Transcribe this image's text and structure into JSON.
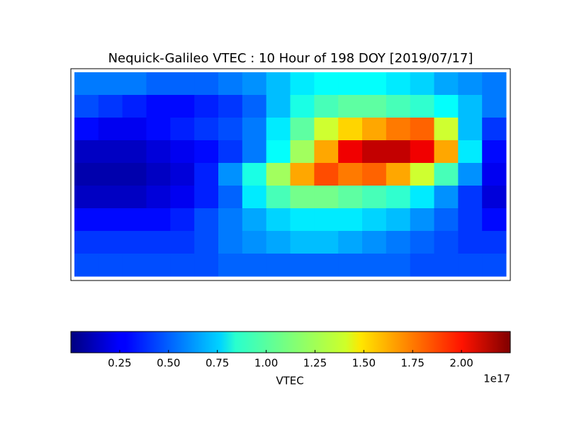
{
  "chart_data": {
    "type": "heatmap",
    "title": "Nequick-Galileo VTEC : 10 Hour of 198 DOY [2019/07/17]",
    "colormap": "jet",
    "values": [
      [
        0.55,
        0.55,
        0.55,
        0.5,
        0.5,
        0.5,
        0.55,
        0.6,
        0.7,
        0.8,
        0.85,
        0.85,
        0.85,
        0.8,
        0.75,
        0.65,
        0.6,
        0.55
      ],
      [
        0.45,
        0.4,
        0.35,
        0.3,
        0.3,
        0.35,
        0.4,
        0.5,
        0.7,
        0.9,
        1.0,
        1.05,
        1.05,
        1.0,
        0.95,
        0.85,
        0.7,
        0.55
      ],
      [
        0.3,
        0.25,
        0.25,
        0.3,
        0.35,
        0.4,
        0.45,
        0.55,
        0.8,
        1.05,
        1.3,
        1.5,
        1.6,
        1.7,
        1.75,
        1.3,
        0.7,
        0.4
      ],
      [
        0.15,
        0.15,
        0.15,
        0.2,
        0.25,
        0.3,
        0.4,
        0.55,
        0.85,
        1.2,
        1.6,
        2.0,
        2.1,
        2.1,
        2.0,
        1.6,
        0.8,
        0.3
      ],
      [
        0.1,
        0.1,
        0.1,
        0.15,
        0.2,
        0.35,
        0.6,
        0.9,
        1.2,
        1.6,
        1.8,
        1.7,
        1.75,
        1.6,
        1.3,
        1.0,
        0.6,
        0.25
      ],
      [
        0.15,
        0.15,
        0.15,
        0.2,
        0.25,
        0.35,
        0.5,
        0.8,
        1.0,
        1.1,
        1.1,
        1.05,
        1.0,
        0.95,
        0.8,
        0.6,
        0.4,
        0.2
      ],
      [
        0.3,
        0.3,
        0.3,
        0.3,
        0.35,
        0.45,
        0.55,
        0.65,
        0.75,
        0.8,
        0.8,
        0.8,
        0.75,
        0.7,
        0.6,
        0.5,
        0.4,
        0.3
      ],
      [
        0.4,
        0.4,
        0.4,
        0.4,
        0.4,
        0.45,
        0.55,
        0.6,
        0.65,
        0.7,
        0.7,
        0.65,
        0.6,
        0.55,
        0.5,
        0.45,
        0.4,
        0.4
      ],
      [
        0.45,
        0.45,
        0.45,
        0.45,
        0.45,
        0.45,
        0.5,
        0.5,
        0.5,
        0.5,
        0.5,
        0.5,
        0.5,
        0.5,
        0.45,
        0.45,
        0.45,
        0.45
      ]
    ],
    "clim": [
      0,
      2.25
    ],
    "cticks": [
      0.25,
      {
        "value": 0.5,
        "label": "0.50"
      },
      0.75,
      {
        "value": 1.0,
        "label": "1.00"
      },
      1.25,
      {
        "value": 1.5,
        "label": "1.50"
      },
      1.75,
      {
        "value": 2.0,
        "label": "2.00"
      }
    ],
    "clabel": "VTEC",
    "offset_label": "1e17"
  }
}
